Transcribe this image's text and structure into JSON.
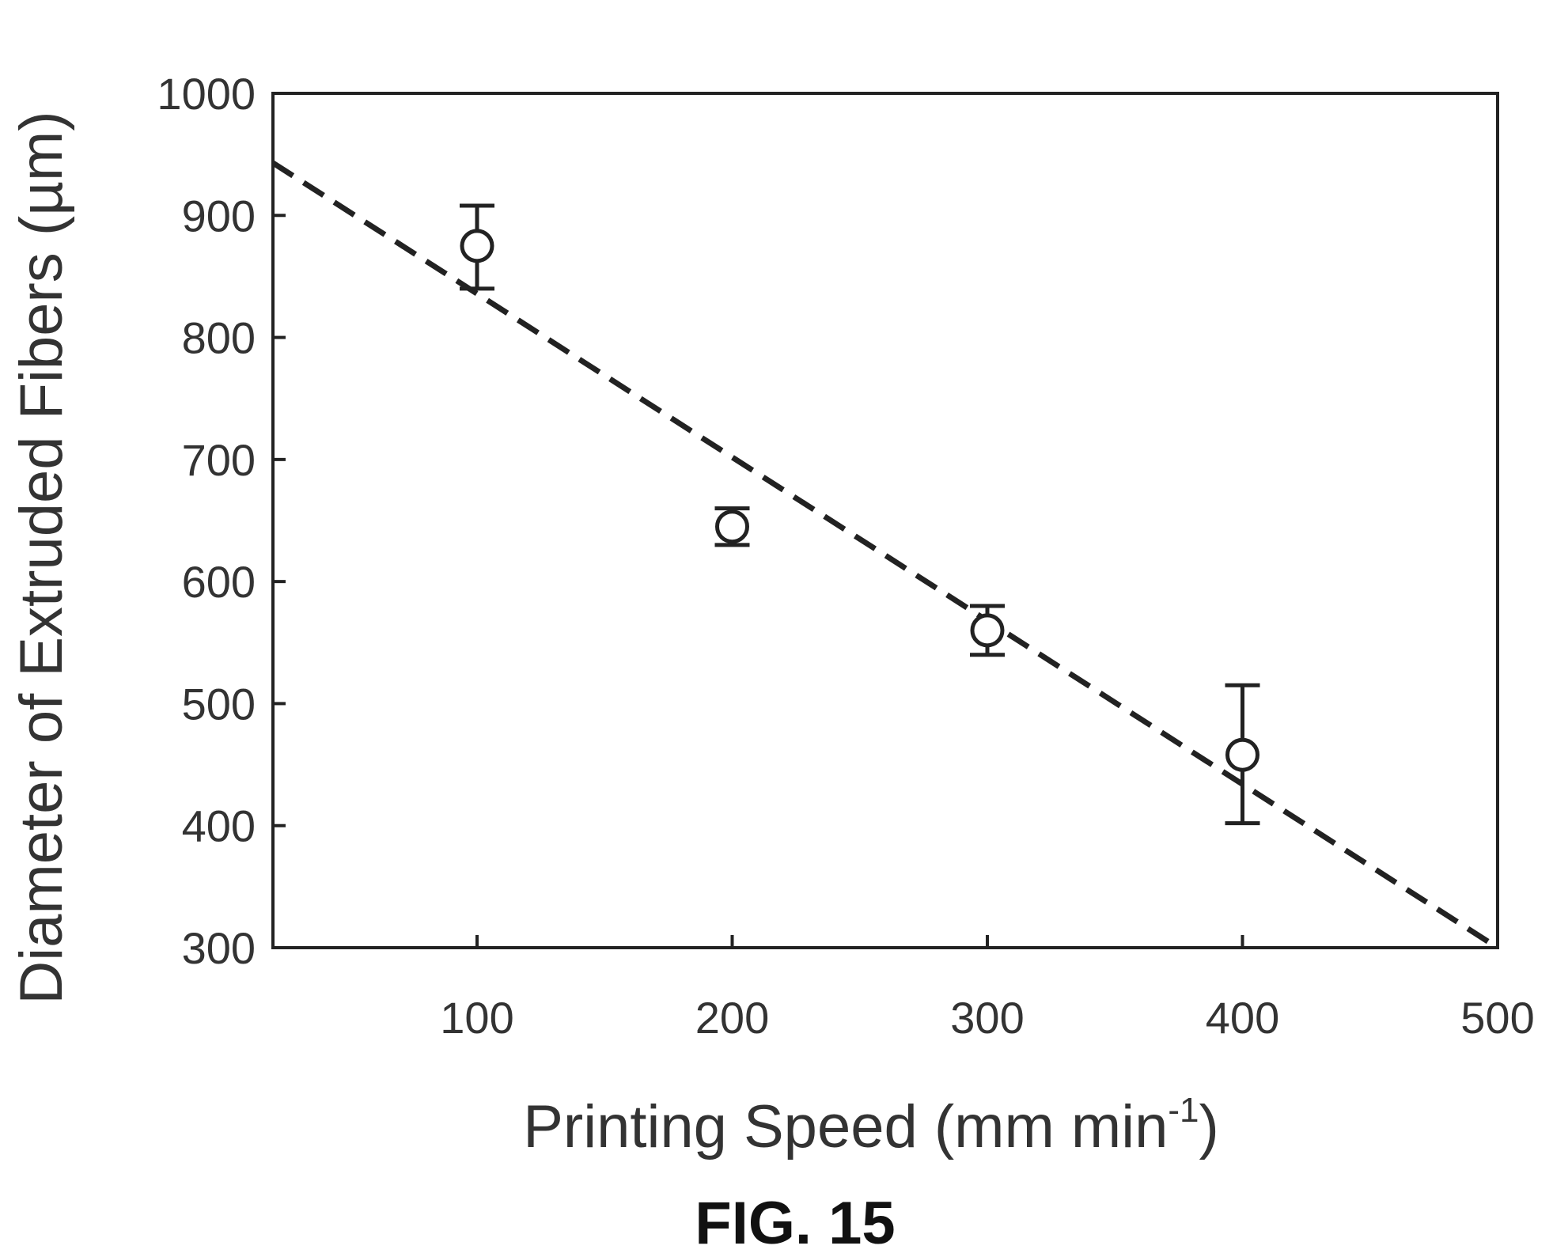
{
  "chart_data": {
    "type": "scatter",
    "x": [
      100,
      200,
      300,
      400
    ],
    "y": [
      875,
      645,
      560,
      458
    ],
    "error_low": [
      840,
      630,
      540,
      402
    ],
    "error_high": [
      908,
      660,
      580,
      515
    ],
    "trendline": {
      "x": [
        20,
        500
      ],
      "y": [
        943,
        300
      ],
      "style": "dashed"
    },
    "xlim": [
      20,
      500
    ],
    "ylim": [
      300,
      1000
    ],
    "xticks": [
      100,
      200,
      300,
      400,
      500
    ],
    "yticks": [
      300,
      400,
      500,
      600,
      700,
      800,
      900,
      1000
    ],
    "xlabel": "Printing Speed (mm min",
    "xlabel_superscript": "-1",
    "xlabel_suffix": ")",
    "ylabel": "Diameter of Extruded Fibers (µm)",
    "grid": false,
    "marker": "open-circle",
    "line_color": "#222222"
  },
  "caption": "FIG. 15"
}
